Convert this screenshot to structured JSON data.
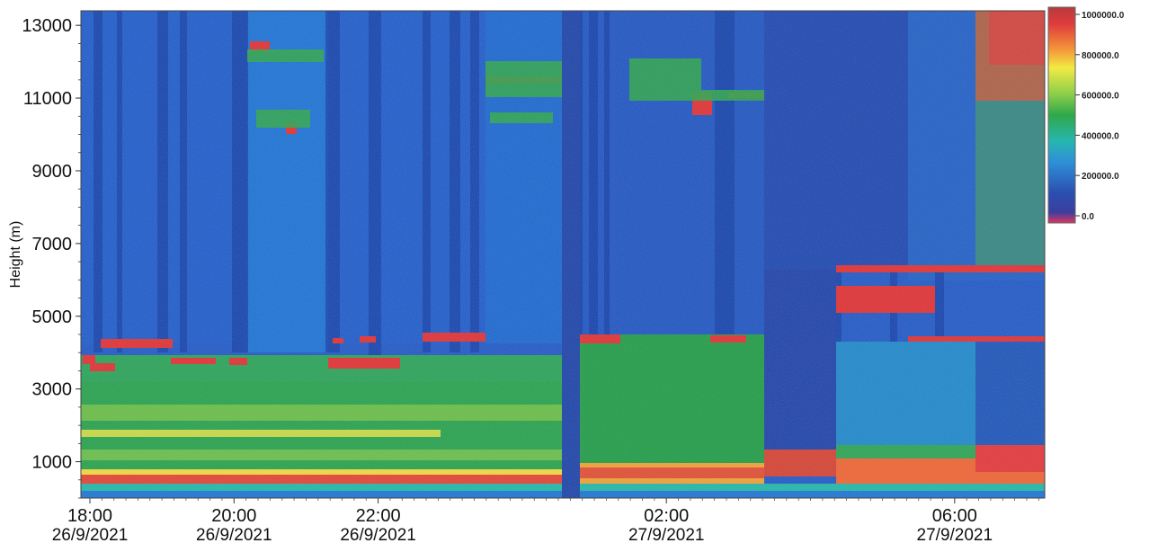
{
  "chart_data": {
    "type": "heatmap",
    "ylabel": "Height (m)",
    "y_ticks": [
      "1000",
      "3000",
      "5000",
      "7000",
      "9000",
      "11000",
      "13000"
    ],
    "ylim": [
      0,
      13400
    ],
    "x_ticks": [
      {
        "time": "18:00",
        "date": "26/9/2021"
      },
      {
        "time": "20:00",
        "date": "26/9/2021"
      },
      {
        "time": "22:00",
        "date": "26/9/2021"
      },
      {
        "time": "02:00",
        "date": "27/9/2021"
      },
      {
        "time": "06:00",
        "date": "27/9/2021"
      }
    ],
    "colorbar": {
      "labels": [
        "1000000.0",
        "800000.0",
        "600000.0",
        "400000.0",
        "200000.0",
        "0.0"
      ],
      "range": [
        0,
        1000000
      ],
      "colors": [
        "#d83a3e",
        "#f08a3c",
        "#f5e84a",
        "#3db54a",
        "#2bb7c8",
        "#2e86d6",
        "#2b4fa8",
        "#d8345a"
      ]
    },
    "grid": false,
    "legend": "right"
  }
}
